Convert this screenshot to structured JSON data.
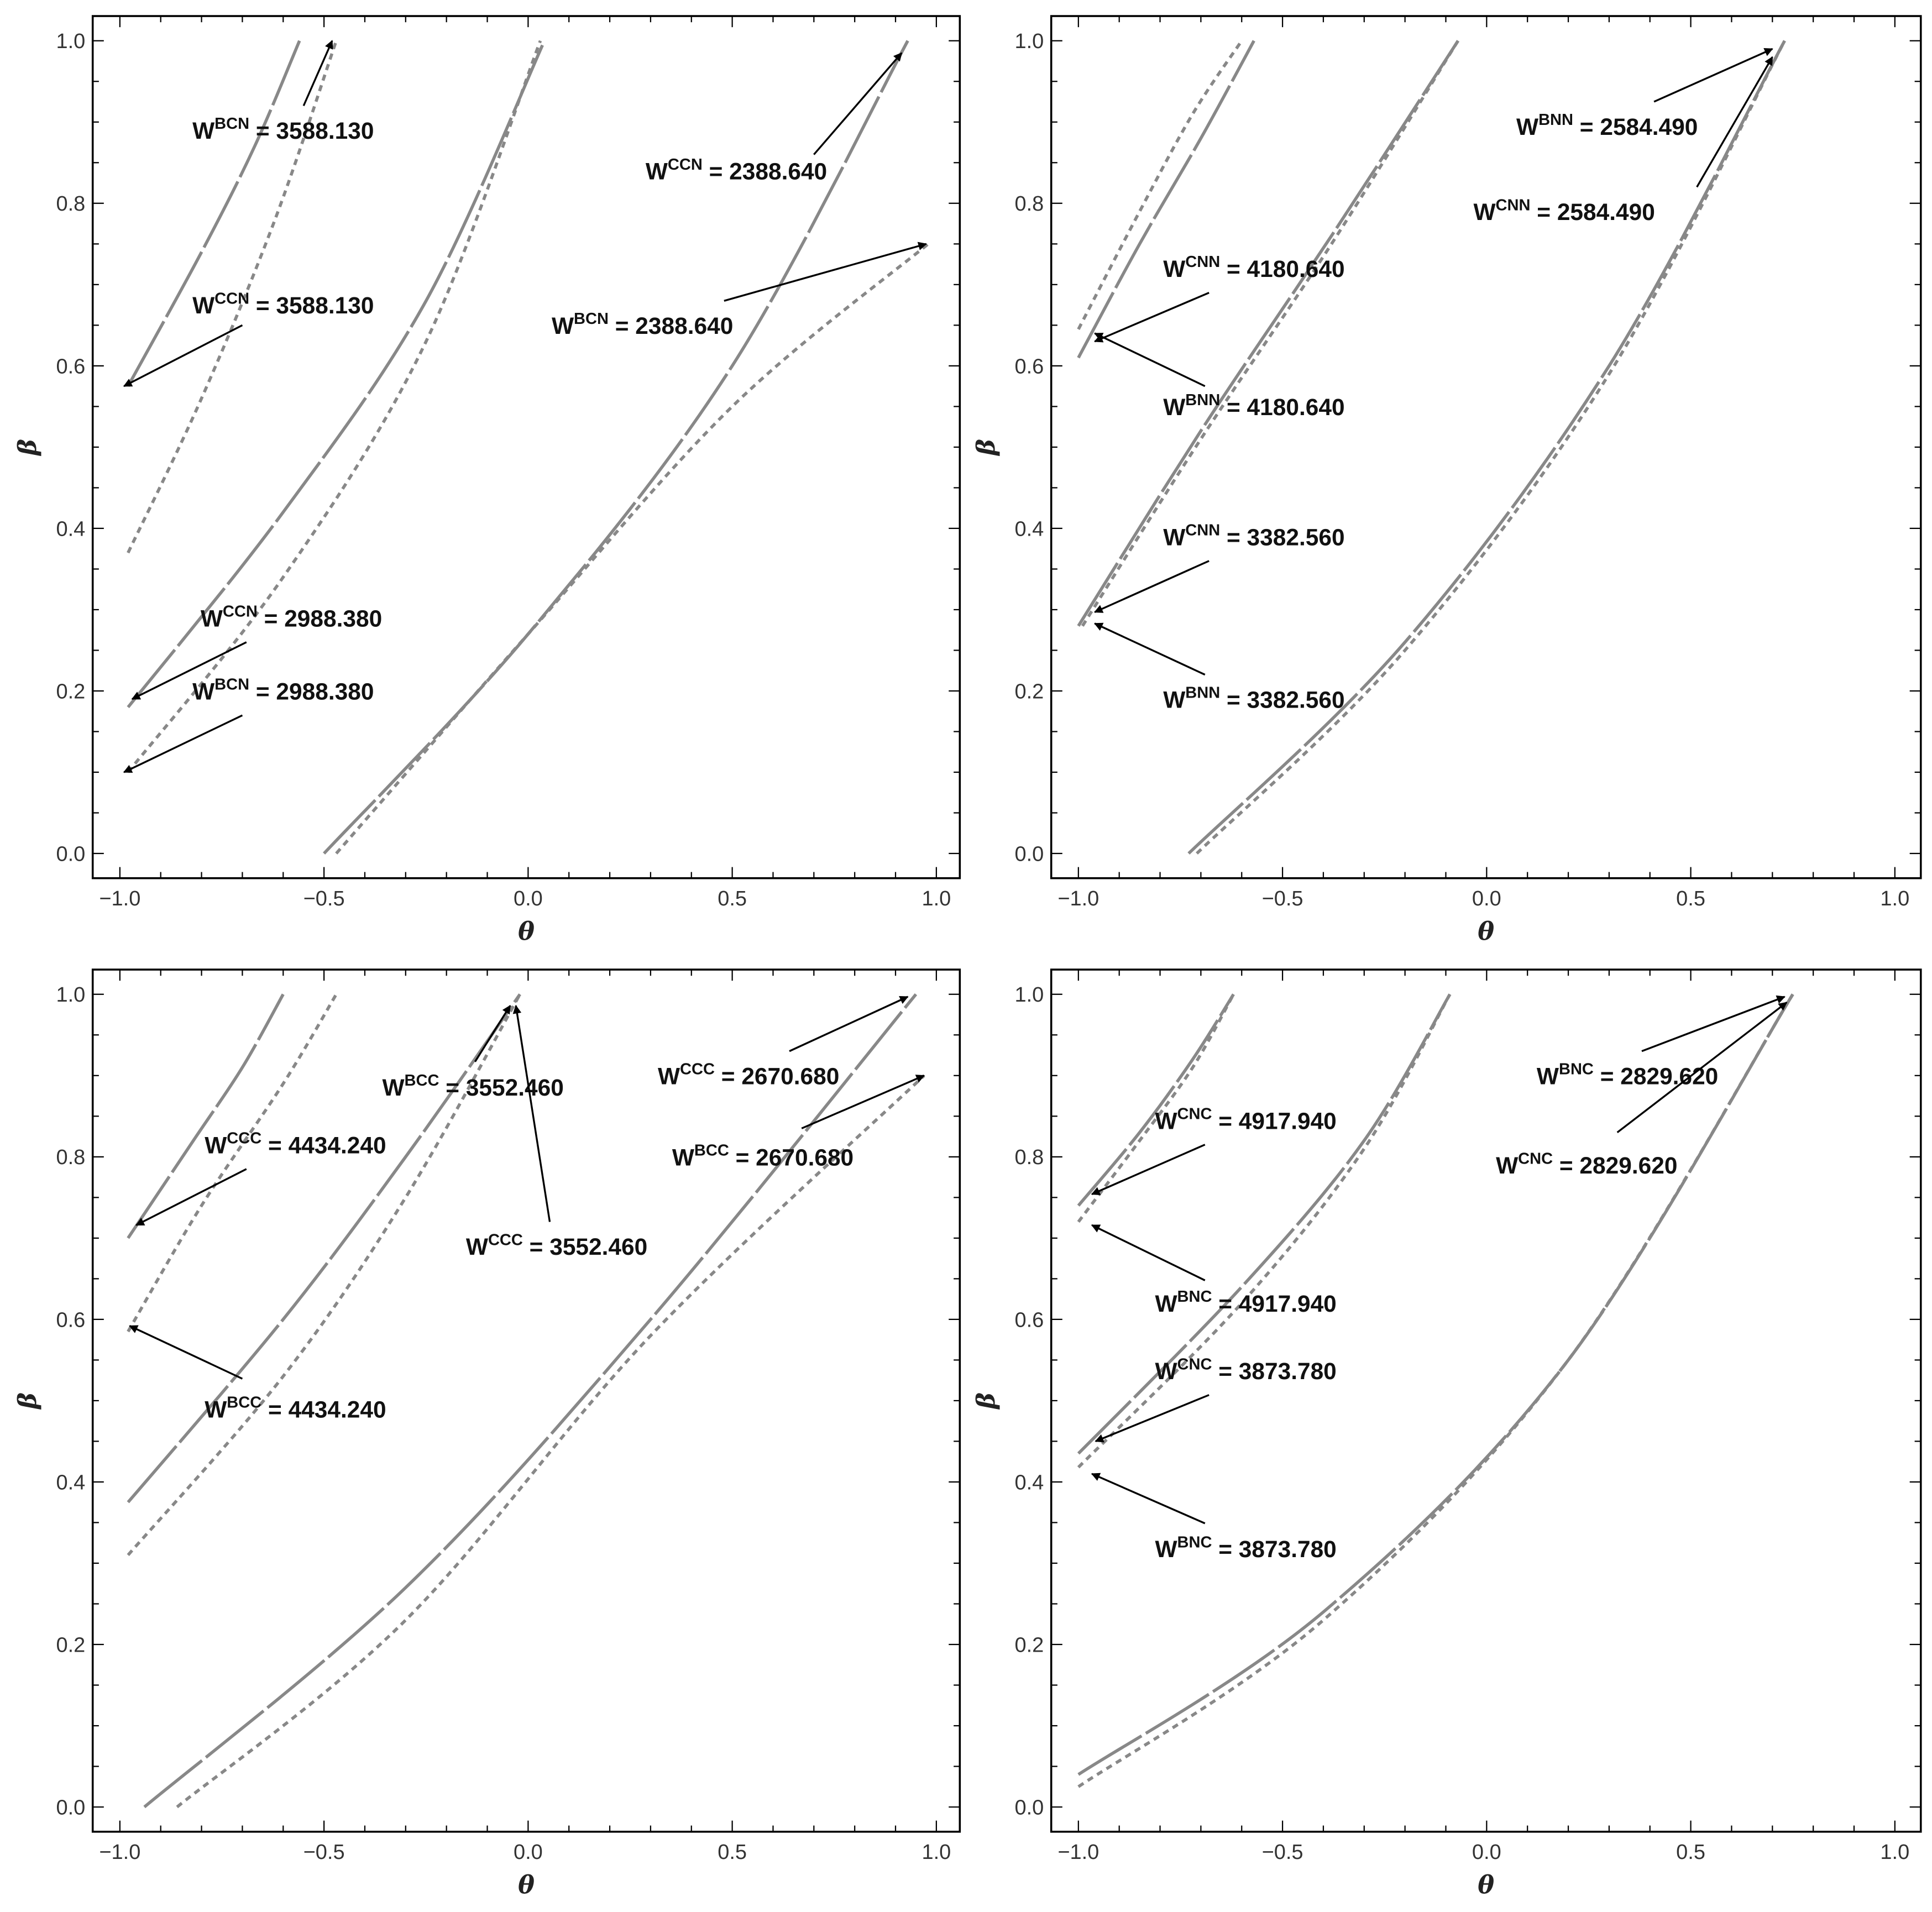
{
  "chart_data": [
    {
      "type": "line",
      "xlabel": "θ",
      "ylabel": "β",
      "xlim": [
        -1.05,
        1.05
      ],
      "ylim": [
        -0.03,
        1.03
      ],
      "xticks": [
        "−1.0",
        "−0.5",
        "0.0",
        "0.5",
        "1.0"
      ],
      "yticks": [
        "0.0",
        "0.2",
        "0.4",
        "0.6",
        "0.8",
        "1.0"
      ],
      "series": [
        {
          "name": "solid-1",
          "style": "solid",
          "points": [
            [
              -0.98,
              0.575
            ],
            [
              -0.8,
              0.74
            ],
            [
              -0.67,
              0.87
            ],
            [
              -0.56,
              1.0
            ]
          ]
        },
        {
          "name": "dotted-1",
          "style": "dotted",
          "points": [
            [
              -0.98,
              0.37
            ],
            [
              -0.8,
              0.56
            ],
            [
              -0.62,
              0.78
            ],
            [
              -0.47,
              1.0
            ]
          ]
        },
        {
          "name": "solid-2",
          "style": "solid",
          "points": [
            [
              -0.98,
              0.18
            ],
            [
              -0.6,
              0.42
            ],
            [
              -0.25,
              0.68
            ],
            [
              0.04,
              1.0
            ]
          ]
        },
        {
          "name": "dotted-2",
          "style": "dotted",
          "points": [
            [
              -0.98,
              0.1
            ],
            [
              -0.6,
              0.34
            ],
            [
              -0.25,
              0.63
            ],
            [
              0.03,
              1.0
            ]
          ]
        },
        {
          "name": "solid-3",
          "style": "solid",
          "points": [
            [
              -0.5,
              0
            ],
            [
              0,
              0.27
            ],
            [
              0.5,
              0.6
            ],
            [
              0.93,
              1.0
            ]
          ]
        },
        {
          "name": "dotted-3",
          "style": "dotted",
          "points": [
            [
              -0.47,
              0
            ],
            [
              0,
              0.27
            ],
            [
              0.5,
              0.55
            ],
            [
              0.98,
              0.75
            ]
          ]
        }
      ],
      "annotations": [
        {
          "base": "W",
          "sup": "BCN",
          "value": " = 3588.130",
          "at": [
            -0.6,
            0.89
          ],
          "from": [
            -0.55,
            0.92
          ],
          "to": [
            -0.48,
            1.0
          ]
        },
        {
          "base": "W",
          "sup": "CCN",
          "value": " = 2388.640",
          "at": [
            0.51,
            0.84
          ],
          "from": [
            0.7,
            0.86
          ],
          "to": [
            0.915,
            0.985
          ]
        },
        {
          "base": "W",
          "sup": "CCN",
          "value": " = 3588.130",
          "at": [
            -0.6,
            0.675
          ],
          "from": [
            -0.7,
            0.65
          ],
          "to": [
            -0.99,
            0.575
          ]
        },
        {
          "base": "W",
          "sup": "BCN",
          "value": " = 2388.640",
          "at": [
            0.28,
            0.65
          ],
          "from": [
            0.48,
            0.68
          ],
          "to": [
            0.975,
            0.75
          ]
        },
        {
          "base": "W",
          "sup": "CCN",
          "value": " = 2988.380",
          "at": [
            -0.58,
            0.29
          ],
          "from": [
            -0.69,
            0.26
          ],
          "to": [
            -0.97,
            0.19
          ]
        },
        {
          "base": "W",
          "sup": "BCN",
          "value": " = 2988.380",
          "at": [
            -0.6,
            0.2
          ],
          "from": [
            -0.7,
            0.17
          ],
          "to": [
            -0.99,
            0.1
          ]
        }
      ]
    },
    {
      "type": "line",
      "xlabel": "θ",
      "ylabel": "β",
      "xlim": [
        -1.05,
        1.05
      ],
      "ylim": [
        -0.03,
        1.03
      ],
      "xticks": [
        "−1.0",
        "−0.5",
        "0.0",
        "0.5",
        "1.0"
      ],
      "yticks": [
        "0.0",
        "0.2",
        "0.4",
        "0.6",
        "0.8",
        "1.0"
      ],
      "series": [
        {
          "name": "solid-1",
          "style": "solid",
          "points": [
            [
              -1,
              0.61
            ],
            [
              -0.85,
              0.75
            ],
            [
              -0.7,
              0.88
            ],
            [
              -0.57,
              1.0
            ]
          ]
        },
        {
          "name": "dotted-1",
          "style": "dotted",
          "points": [
            [
              -1,
              0.645
            ],
            [
              -0.85,
              0.79
            ],
            [
              -0.72,
              0.91
            ],
            [
              -0.6,
              1.0
            ]
          ]
        },
        {
          "name": "solid-2",
          "style": "solid",
          "points": [
            [
              -1,
              0.28
            ],
            [
              -0.7,
              0.52
            ],
            [
              -0.38,
              0.76
            ],
            [
              -0.07,
              1.0
            ]
          ]
        },
        {
          "name": "dotted-2",
          "style": "dotted",
          "points": [
            [
              -0.99,
              0.28
            ],
            [
              -0.7,
              0.51
            ],
            [
              -0.38,
              0.75
            ],
            [
              -0.07,
              1.0
            ]
          ]
        },
        {
          "name": "solid-3",
          "style": "solid",
          "points": [
            [
              -0.73,
              0
            ],
            [
              -0.2,
              0.26
            ],
            [
              0.3,
              0.6
            ],
            [
              0.73,
              1.0
            ]
          ]
        },
        {
          "name": "dotted-3",
          "style": "dotted",
          "points": [
            [
              -0.71,
              0
            ],
            [
              -0.2,
              0.25
            ],
            [
              0.3,
              0.59
            ],
            [
              0.73,
              1.0
            ]
          ]
        }
      ],
      "annotations": [
        {
          "base": "W",
          "sup": "BNN",
          "value": " = 2584.490",
          "at": [
            0.295,
            0.895
          ],
          "from": [
            0.41,
            0.925
          ],
          "to": [
            0.7,
            0.99
          ]
        },
        {
          "base": "W",
          "sup": "CNN",
          "value": " = 2584.490",
          "at": [
            0.19,
            0.79
          ],
          "from": [
            0.515,
            0.82
          ],
          "to": [
            0.7,
            0.98
          ]
        },
        {
          "base": "W",
          "sup": "CNN",
          "value": " = 4180.640",
          "at": [
            -0.57,
            0.72
          ],
          "from": [
            -0.68,
            0.69
          ],
          "to": [
            -0.96,
            0.63
          ]
        },
        {
          "base": "W",
          "sup": "BNN",
          "value": " = 4180.640",
          "at": [
            -0.57,
            0.55
          ],
          "from": [
            -0.69,
            0.575
          ],
          "to": [
            -0.96,
            0.64
          ]
        },
        {
          "base": "W",
          "sup": "CNN",
          "value": " = 3382.560",
          "at": [
            -0.57,
            0.39
          ],
          "from": [
            -0.68,
            0.36
          ],
          "to": [
            -0.96,
            0.297
          ]
        },
        {
          "base": "W",
          "sup": "BNN",
          "value": " = 3382.560",
          "at": [
            -0.57,
            0.19
          ],
          "from": [
            -0.69,
            0.22
          ],
          "to": [
            -0.96,
            0.283
          ]
        }
      ]
    },
    {
      "type": "line",
      "xlabel": "θ",
      "ylabel": "β",
      "xlim": [
        -1.05,
        1.05
      ],
      "ylim": [
        -0.03,
        1.03
      ],
      "xticks": [
        "−1.0",
        "−0.5",
        "0.0",
        "0.5",
        "1.0"
      ],
      "yticks": [
        "0.0",
        "0.2",
        "0.4",
        "0.6",
        "0.8",
        "1.0"
      ],
      "series": [
        {
          "name": "solid-1",
          "style": "solid",
          "points": [
            [
              -0.98,
              0.7
            ],
            [
              -0.82,
              0.82
            ],
            [
              -0.7,
              0.91
            ],
            [
              -0.6,
              1.0
            ]
          ]
        },
        {
          "name": "dotted-1",
          "style": "dotted",
          "points": [
            [
              -0.98,
              0.585
            ],
            [
              -0.8,
              0.74
            ],
            [
              -0.6,
              0.89
            ],
            [
              -0.47,
              1.0
            ]
          ]
        },
        {
          "name": "solid-2",
          "style": "solid",
          "points": [
            [
              -0.98,
              0.375
            ],
            [
              -0.6,
              0.6
            ],
            [
              -0.3,
              0.8
            ],
            [
              -0.02,
              1.0
            ]
          ]
        },
        {
          "name": "dotted-2",
          "style": "dotted",
          "points": [
            [
              -0.98,
              0.31
            ],
            [
              -0.6,
              0.53
            ],
            [
              -0.3,
              0.75
            ],
            [
              -0.02,
              1.0
            ]
          ]
        },
        {
          "name": "solid-3",
          "style": "solid",
          "points": [
            [
              -0.94,
              0
            ],
            [
              -0.3,
              0.27
            ],
            [
              0.3,
              0.6
            ],
            [
              0.95,
              1.0
            ]
          ]
        },
        {
          "name": "dotted-3",
          "style": "dotted",
          "points": [
            [
              -0.86,
              0
            ],
            [
              -0.3,
              0.23
            ],
            [
              0.3,
              0.58
            ],
            [
              0.97,
              0.9
            ]
          ]
        }
      ],
      "annotations": [
        {
          "base": "W",
          "sup": "CCC",
          "value": " = 4434.240",
          "at": [
            -0.57,
            0.815
          ],
          "from": [
            -0.69,
            0.785
          ],
          "to": [
            -0.96,
            0.716
          ]
        },
        {
          "base": "W",
          "sup": "BCC",
          "value": " = 4434.240",
          "at": [
            -0.57,
            0.49
          ],
          "from": [
            -0.7,
            0.527
          ],
          "to": [
            -0.976,
            0.592
          ]
        },
        {
          "base": "W",
          "sup": "BCC",
          "value": " = 3552.460",
          "at": [
            -0.135,
            0.886
          ],
          "from": [
            -0.13,
            0.917
          ],
          "to": [
            -0.044,
            0.986
          ]
        },
        {
          "base": "W",
          "sup": "CCC",
          "value": " = 3552.460",
          "at": [
            0.07,
            0.69
          ],
          "from": [
            0.053,
            0.72
          ],
          "to": [
            -0.03,
            0.986
          ]
        },
        {
          "base": "W",
          "sup": "CCC",
          "value": " = 2670.680",
          "at": [
            0.54,
            0.9
          ],
          "from": [
            0.64,
            0.93
          ],
          "to": [
            0.93,
            0.997
          ]
        },
        {
          "base": "W",
          "sup": "BCC",
          "value": " = 2670.680",
          "at": [
            0.575,
            0.8
          ],
          "from": [
            0.67,
            0.835
          ],
          "to": [
            0.97,
            0.9
          ]
        }
      ]
    },
    {
      "type": "line",
      "xlabel": "θ",
      "ylabel": "β",
      "xlim": [
        -1.05,
        1.05
      ],
      "ylim": [
        -0.03,
        1.03
      ],
      "xticks": [
        "−1.0",
        "−0.5",
        "0.0",
        "0.5",
        "1.0"
      ],
      "yticks": [
        "0.0",
        "0.2",
        "0.4",
        "0.6",
        "0.8",
        "1.0"
      ],
      "series": [
        {
          "name": "solid-1",
          "style": "solid",
          "points": [
            [
              -1,
              0.74
            ],
            [
              -0.85,
              0.83
            ],
            [
              -0.72,
              0.92
            ],
            [
              -0.62,
              1.0
            ]
          ]
        },
        {
          "name": "dotted-1",
          "style": "dotted",
          "points": [
            [
              -1,
              0.72
            ],
            [
              -0.85,
              0.82
            ],
            [
              -0.72,
              0.91
            ],
            [
              -0.62,
              1.0
            ]
          ]
        },
        {
          "name": "solid-2",
          "style": "solid",
          "points": [
            [
              -1,
              0.435
            ],
            [
              -0.6,
              0.64
            ],
            [
              -0.3,
              0.82
            ],
            [
              -0.09,
              1.0
            ]
          ]
        },
        {
          "name": "dotted-2",
          "style": "dotted",
          "points": [
            [
              -1,
              0.418
            ],
            [
              -0.6,
              0.62
            ],
            [
              -0.3,
              0.81
            ],
            [
              -0.09,
              1.0
            ]
          ]
        },
        {
          "name": "solid-3",
          "style": "solid",
          "points": [
            [
              -1,
              0.04
            ],
            [
              -0.4,
              0.24
            ],
            [
              0.2,
              0.55
            ],
            [
              0.75,
              1.0
            ]
          ]
        },
        {
          "name": "dotted-3",
          "style": "dotted",
          "points": [
            [
              -1,
              0.025
            ],
            [
              -0.4,
              0.23
            ],
            [
              0.2,
              0.55
            ],
            [
              0.75,
              1.0
            ]
          ]
        }
      ],
      "annotations": [
        {
          "base": "W",
          "sup": "BNC",
          "value": " = 2829.620",
          "at": [
            0.345,
            0.9
          ],
          "from": [
            0.38,
            0.93
          ],
          "to": [
            0.73,
            0.997
          ]
        },
        {
          "base": "W",
          "sup": "CNC",
          "value": " = 2829.620",
          "at": [
            0.245,
            0.79
          ],
          "from": [
            0.32,
            0.83
          ],
          "to": [
            0.735,
            0.99
          ]
        },
        {
          "base": "W",
          "sup": "CNC",
          "value": " = 4917.940",
          "at": [
            -0.59,
            0.845
          ],
          "from": [
            -0.69,
            0.815
          ],
          "to": [
            -0.967,
            0.754
          ]
        },
        {
          "base": "W",
          "sup": "BNC",
          "value": " = 4917.940",
          "at": [
            -0.59,
            0.62
          ],
          "from": [
            -0.69,
            0.648
          ],
          "to": [
            -0.967,
            0.716
          ]
        },
        {
          "base": "W",
          "sup": "CNC",
          "value": " = 3873.780",
          "at": [
            -0.59,
            0.537
          ],
          "from": [
            -0.68,
            0.507
          ],
          "to": [
            -0.958,
            0.45
          ]
        },
        {
          "base": "W",
          "sup": "BNC",
          "value": " = 3873.780",
          "at": [
            -0.59,
            0.318
          ],
          "from": [
            -0.69,
            0.349
          ],
          "to": [
            -0.967,
            0.41
          ]
        }
      ]
    }
  ],
  "colors": {
    "curve": "#888888",
    "arrow": "#000000",
    "frame": "#000000"
  }
}
